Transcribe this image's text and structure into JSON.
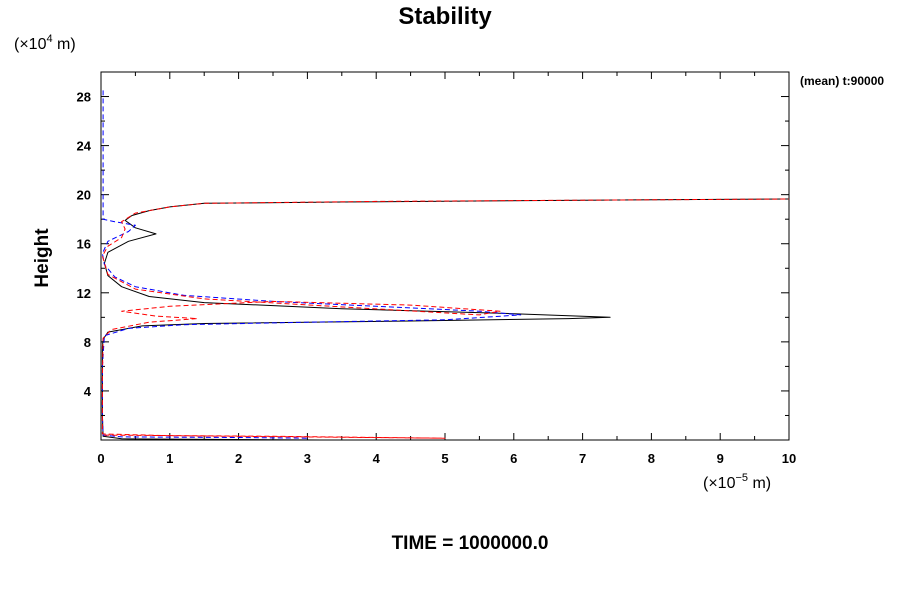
{
  "chart_data": {
    "type": "line",
    "title": "Stability",
    "ylabel": "Height",
    "xlabel": "",
    "y_unit_prefix": "(×10",
    "y_unit_exp": "4",
    "y_unit_suffix": " m)",
    "x_unit_prefix": "(×10",
    "x_unit_exp": "−5",
    "x_unit_suffix": " m)",
    "annotation": "(mean) t:90000",
    "footer": "TIME = 1000000.0",
    "xlim": [
      0,
      10
    ],
    "ylim": [
      0,
      30
    ],
    "x_ticks": [
      0,
      1,
      2,
      3,
      4,
      5,
      6,
      7,
      8,
      9,
      10
    ],
    "x_tick_labels": [
      "0",
      "1",
      "2",
      "3",
      "4",
      "5",
      "6",
      "7",
      "8",
      "9",
      "10"
    ],
    "y_ticks": [
      4,
      8,
      12,
      16,
      20,
      24,
      28
    ],
    "y_tick_labels": [
      "4",
      "8",
      "12",
      "16",
      "20",
      "24",
      "28"
    ],
    "grid": false,
    "series": [
      {
        "color": "#000000",
        "style": "solid",
        "points": [
          [
            3.2,
            0.0
          ],
          [
            0.3,
            0.1
          ],
          [
            0.03,
            0.3
          ],
          [
            0.02,
            2.0
          ],
          [
            0.02,
            7.6
          ],
          [
            0.03,
            8.2
          ],
          [
            0.1,
            8.8
          ],
          [
            0.6,
            9.3
          ],
          [
            1.5,
            9.5
          ],
          [
            4.5,
            9.7
          ],
          [
            6.8,
            9.9
          ],
          [
            7.4,
            10.0
          ],
          [
            6.0,
            10.3
          ],
          [
            3.5,
            10.7
          ],
          [
            1.5,
            11.2
          ],
          [
            0.7,
            11.7
          ],
          [
            0.3,
            12.5
          ],
          [
            0.1,
            13.4
          ],
          [
            0.05,
            14.4
          ],
          [
            0.1,
            15.3
          ],
          [
            0.4,
            16.2
          ],
          [
            0.8,
            16.8
          ],
          [
            0.5,
            17.3
          ],
          [
            0.35,
            17.9
          ],
          [
            0.45,
            18.3
          ],
          [
            0.7,
            18.7
          ],
          [
            1.0,
            19.0
          ],
          [
            1.5,
            19.3
          ],
          [
            3.5,
            19.4
          ],
          [
            7.0,
            19.55
          ],
          [
            10.0,
            19.65
          ]
        ]
      },
      {
        "color": "#0000ff",
        "style": "dashed",
        "points": [
          [
            0.03,
            28.5
          ],
          [
            0.03,
            24.0
          ],
          [
            0.03,
            18.0
          ],
          [
            0.2,
            17.8
          ],
          [
            0.5,
            17.5
          ],
          [
            0.4,
            17.0
          ],
          [
            0.1,
            16.2
          ],
          [
            0.02,
            15.2
          ],
          [
            0.05,
            14.3
          ],
          [
            0.2,
            13.3
          ],
          [
            0.5,
            12.5
          ],
          [
            1.2,
            11.8
          ],
          [
            2.5,
            11.3
          ],
          [
            4.0,
            10.9
          ],
          [
            5.5,
            10.5
          ],
          [
            6.1,
            10.2
          ],
          [
            5.0,
            9.8
          ],
          [
            3.0,
            9.6
          ],
          [
            1.2,
            9.4
          ],
          [
            0.4,
            9.1
          ],
          [
            0.05,
            8.5
          ],
          [
            0.02,
            6.0
          ],
          [
            0.02,
            2.0
          ],
          [
            0.03,
            0.4
          ],
          [
            0.3,
            0.25
          ],
          [
            2.0,
            0.2
          ],
          [
            3.0,
            0.15
          ]
        ]
      },
      {
        "color": "#ff0000",
        "style": "dashed",
        "points": [
          [
            0.05,
            0.4
          ],
          [
            2.5,
            0.3
          ],
          [
            5.0,
            0.15
          ],
          [
            1.0,
            0.35
          ],
          [
            0.02,
            0.5
          ],
          [
            0.02,
            5.0
          ],
          [
            0.03,
            8.3
          ],
          [
            0.15,
            9.0
          ],
          [
            0.7,
            9.6
          ],
          [
            1.4,
            9.9
          ],
          [
            0.8,
            10.1
          ],
          [
            0.3,
            10.5
          ],
          [
            1.0,
            10.9
          ],
          [
            2.5,
            11.3
          ],
          [
            4.5,
            11.0
          ],
          [
            5.8,
            10.5
          ],
          [
            5.5,
            10.2
          ],
          [
            1.5,
            11.5
          ],
          [
            0.5,
            12.3
          ],
          [
            0.1,
            13.5
          ],
          [
            0.02,
            15.0
          ],
          [
            0.1,
            15.8
          ],
          [
            0.3,
            16.5
          ],
          [
            0.35,
            17.2
          ],
          [
            0.3,
            17.8
          ],
          [
            0.5,
            18.5
          ],
          [
            1.0,
            19.0
          ],
          [
            1.5,
            19.3
          ],
          [
            4.0,
            19.45
          ],
          [
            7.0,
            19.55
          ],
          [
            10.0,
            19.65
          ]
        ]
      }
    ]
  }
}
